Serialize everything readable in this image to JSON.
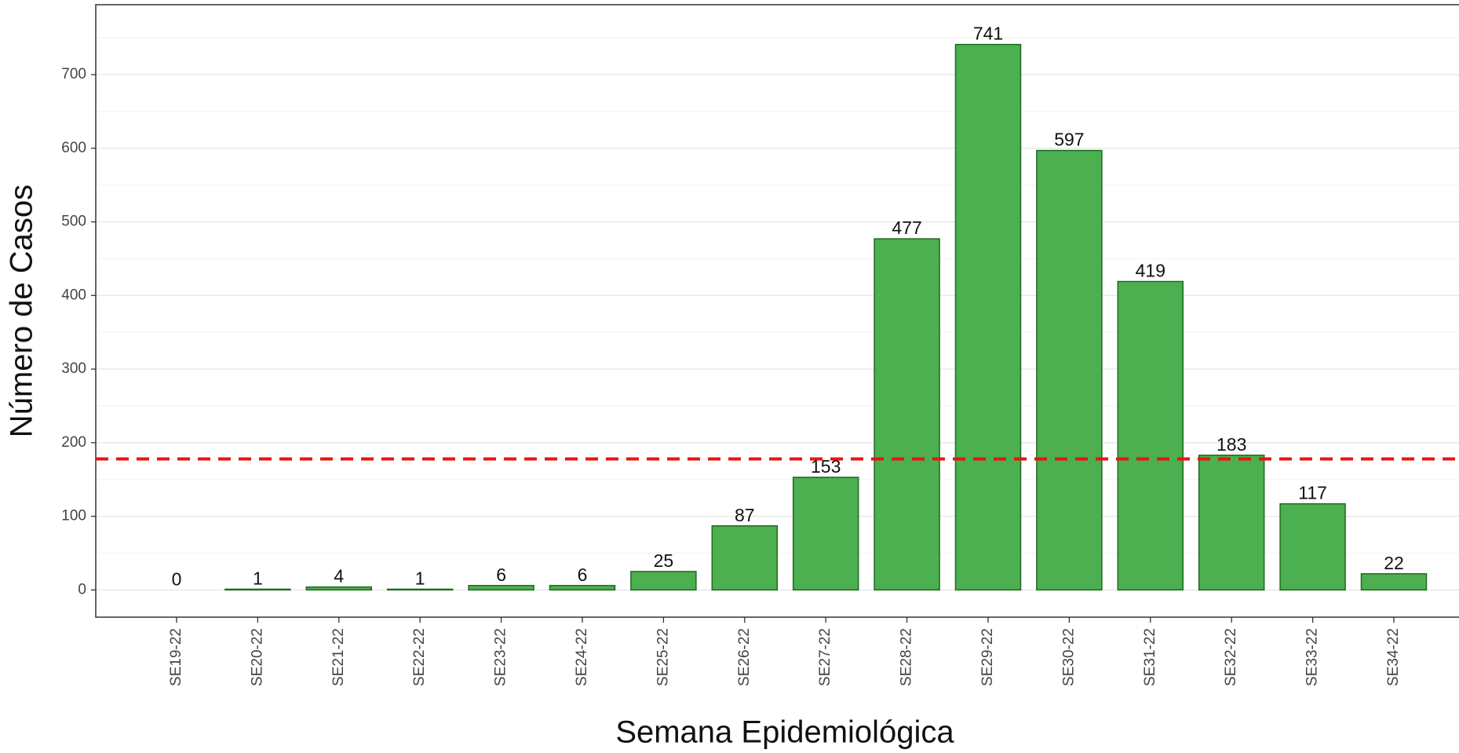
{
  "chart_data": {
    "type": "bar",
    "x_label": "Semana Epidemiológica",
    "y_label": "Número de Casos",
    "categories": [
      "SE19-22",
      "SE20-22",
      "SE21-22",
      "SE22-22",
      "SE23-22",
      "SE24-22",
      "SE25-22",
      "SE26-22",
      "SE27-22",
      "SE28-22",
      "SE29-22",
      "SE30-22",
      "SE31-22",
      "SE32-22",
      "SE33-22",
      "SE34-22"
    ],
    "values": [
      0,
      1,
      4,
      1,
      6,
      6,
      25,
      87,
      153,
      477,
      741,
      597,
      419,
      183,
      117,
      22
    ],
    "color": "#4caf50",
    "edge_color": "#1e6b1e",
    "ylim": [
      -37,
      795
    ],
    "yticks": [
      0,
      100,
      200,
      300,
      400,
      500,
      600,
      700
    ],
    "minor_yticks": [
      50,
      150,
      250,
      350,
      450,
      550,
      650,
      750
    ],
    "grid": true,
    "reference_line": {
      "value": 178,
      "color": "#ee1111"
    }
  }
}
